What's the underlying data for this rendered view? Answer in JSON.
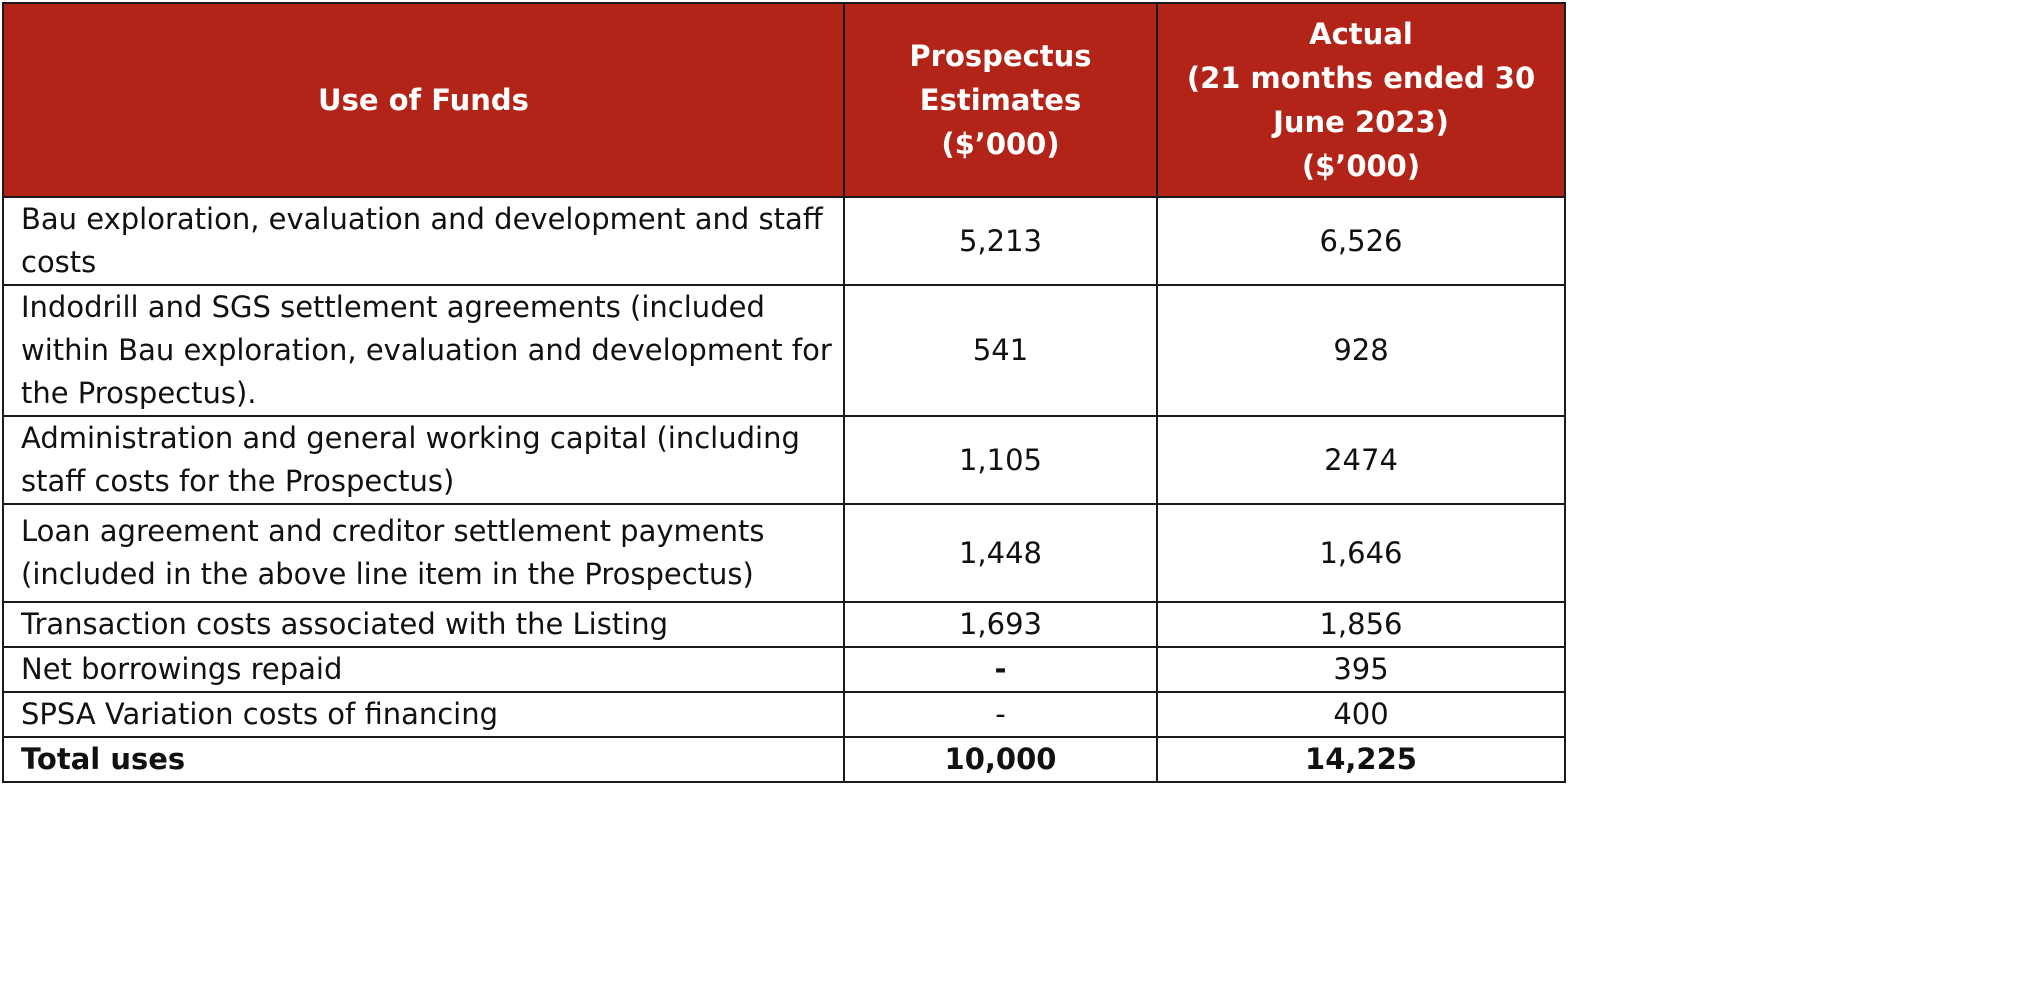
{
  "table": {
    "headers": {
      "use_of_funds": "Use of Funds",
      "prospectus": "Prospectus\nEstimates\n($’000)",
      "actual": "Actual\n(21 months ended 30\nJune 2023)\n($’000)"
    },
    "rows": [
      {
        "label": "Bau exploration, evaluation and development and staff costs",
        "prospectus": "5,213",
        "actual": "6,526"
      },
      {
        "label": "Indodrill and SGS settlement agreements (included within Bau exploration, evaluation and development for the Prospectus).",
        "prospectus": "541",
        "actual": "928"
      },
      {
        "label": "Administration and general working capital (including staff costs for the Prospectus)",
        "prospectus": "1,105",
        "actual": "2474"
      },
      {
        "label": "Loan agreement and creditor settlement payments (included in the above line item in the Prospectus)",
        "prospectus": "1,448",
        "actual": "1,646"
      },
      {
        "label": "Transaction costs associated with the Listing",
        "prospectus": "1,693",
        "actual": "1,856"
      },
      {
        "label": "Net borrowings repaid",
        "prospectus": "-",
        "actual": "395"
      },
      {
        "label": "SPSA Variation costs of financing",
        "prospectus": "-",
        "actual": "400"
      }
    ],
    "total": {
      "label": "Total uses",
      "prospectus": "10,000",
      "actual": "14,225"
    },
    "colors": {
      "header_background": "#b32418",
      "header_text": "#ffffff",
      "border": "#1a1a1a"
    }
  }
}
